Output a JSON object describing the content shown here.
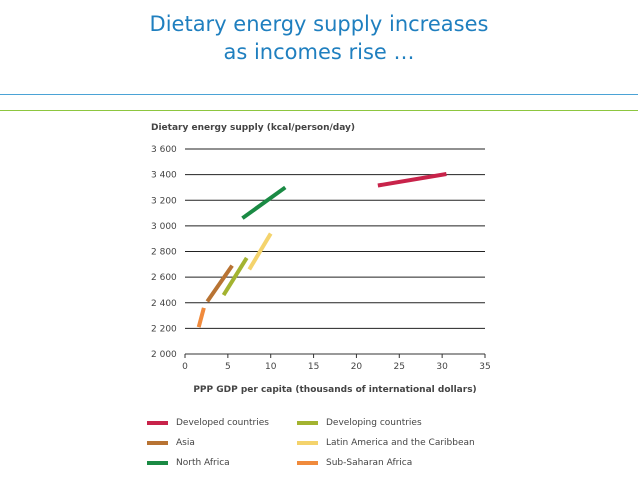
{
  "slide": {
    "title_line1": "Dietary energy supply increases",
    "title_line2": "as incomes rise …"
  },
  "colors": {
    "title": "#1f7fbf",
    "rule_blue": "#4ba3d6",
    "rule_green": "#8dc63f"
  },
  "chart_data": {
    "type": "line",
    "title": "",
    "ylabel": "Dietary energy supply (kcal/person/day)",
    "xlabel": "PPP GDP per capita (thousands of international dollars)",
    "xlim": [
      0,
      35
    ],
    "ylim": [
      2000,
      3600
    ],
    "xticks": [
      0,
      5,
      10,
      15,
      20,
      25,
      30,
      35
    ],
    "xtick_labels": [
      "0",
      "5",
      "10",
      "15",
      "20",
      "25",
      "30",
      "35"
    ],
    "yticks": [
      2000,
      2200,
      2400,
      2600,
      2800,
      3000,
      3200,
      3400,
      3600
    ],
    "ytick_labels": [
      "2 000",
      "2 200",
      "2 400",
      "2 600",
      "2 800",
      "3 000",
      "3 200",
      "3 400",
      "3 600"
    ],
    "grid": true,
    "series": [
      {
        "name": "Developed countries",
        "color": "#c8234a",
        "x": [
          22.5,
          30.5
        ],
        "y": [
          3315,
          3405
        ]
      },
      {
        "name": "Developing countries",
        "color": "#a3b330",
        "x": [
          4.5,
          7.2
        ],
        "y": [
          2460,
          2750
        ]
      },
      {
        "name": "Asia",
        "color": "#b87333",
        "x": [
          2.6,
          5.5
        ],
        "y": [
          2410,
          2690
        ]
      },
      {
        "name": "Latin America and the Caribbean",
        "color": "#f4d36c",
        "x": [
          7.5,
          10.0
        ],
        "y": [
          2660,
          2940
        ]
      },
      {
        "name": "North Africa",
        "color": "#1a8a44",
        "x": [
          6.7,
          11.7
        ],
        "y": [
          3060,
          3300
        ]
      },
      {
        "name": "Sub-Saharan Africa",
        "color": "#f08a3c",
        "x": [
          1.6,
          2.2
        ],
        "y": [
          2210,
          2360
        ]
      }
    ]
  }
}
